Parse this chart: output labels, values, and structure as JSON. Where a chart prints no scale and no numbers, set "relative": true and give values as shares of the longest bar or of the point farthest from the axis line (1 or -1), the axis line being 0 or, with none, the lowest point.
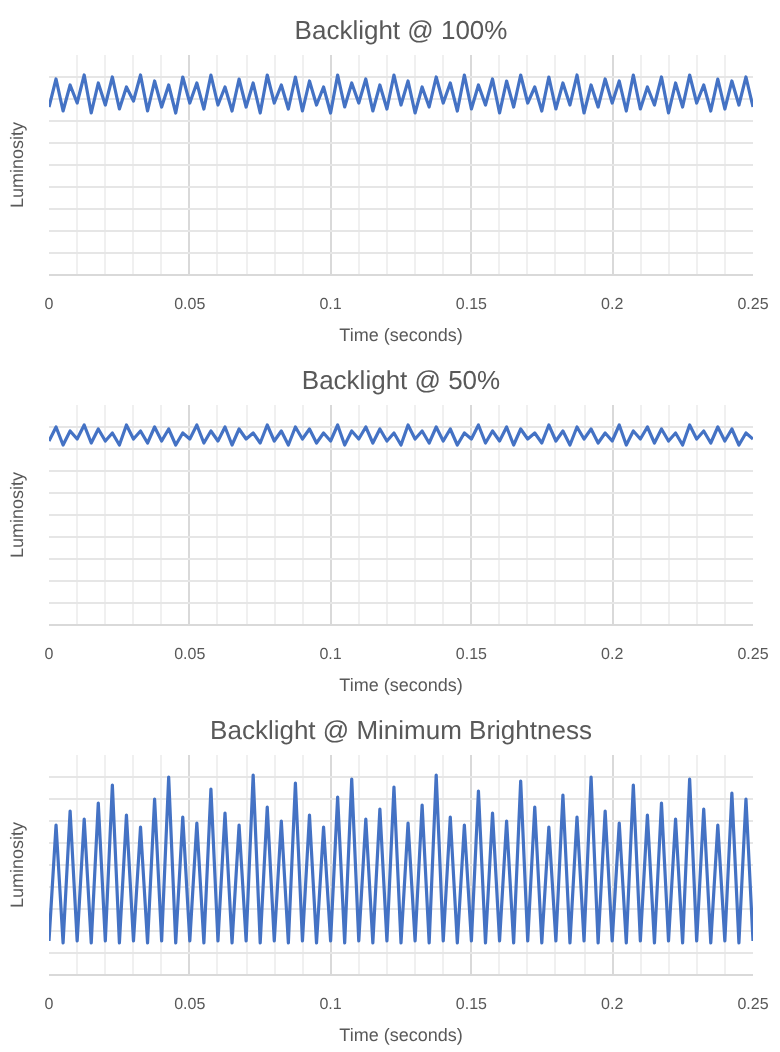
{
  "chart_data": [
    {
      "type": "line",
      "title": "Backlight @ 100%",
      "xlabel": "Time (seconds)",
      "ylabel": "Luminosity",
      "relative": true,
      "grid": true,
      "tick_labels": "x",
      "xlim": [
        0,
        0.25
      ],
      "xticks": [
        0,
        0.05,
        0.1,
        0.15,
        0.2,
        0.25
      ],
      "x": [
        0,
        0.0025,
        0.005,
        0.0075,
        0.01,
        0.0125,
        0.015,
        0.0175,
        0.02,
        0.0225,
        0.025,
        0.0275,
        0.03,
        0.0325,
        0.035,
        0.0375,
        0.04,
        0.0425,
        0.045,
        0.0475,
        0.05,
        0.0525,
        0.055,
        0.0575,
        0.06,
        0.0625,
        0.065,
        0.0675,
        0.07,
        0.0725,
        0.075,
        0.0775,
        0.08,
        0.0825,
        0.085,
        0.0875,
        0.09,
        0.0925,
        0.095,
        0.0975,
        0.1,
        0.1025,
        0.105,
        0.1075,
        0.11,
        0.1125,
        0.115,
        0.1175,
        0.12,
        0.1225,
        0.125,
        0.1275,
        0.13,
        0.1325,
        0.135,
        0.1375,
        0.14,
        0.1425,
        0.145,
        0.1475,
        0.15,
        0.1525,
        0.155,
        0.1575,
        0.16,
        0.1625,
        0.165,
        0.1675,
        0.17,
        0.1725,
        0.175,
        0.1775,
        0.18,
        0.1825,
        0.185,
        0.1875,
        0.19,
        0.1925,
        0.195,
        0.1975,
        0.2,
        0.2025,
        0.205,
        0.2075,
        0.21,
        0.2125,
        0.215,
        0.2175,
        0.22,
        0.2225,
        0.225,
        0.2275,
        0.23,
        0.2325,
        0.235,
        0.2375,
        0.24,
        0.2425,
        0.245,
        0.2475,
        0.25
      ],
      "series": [
        {
          "color": "#4472c4",
          "values": [
            0.84,
            0.98,
            0.82,
            0.95,
            0.86,
            1.0,
            0.81,
            0.96,
            0.85,
            0.99,
            0.83,
            0.94,
            0.87,
            1.0,
            0.82,
            0.97,
            0.84,
            0.95,
            0.81,
            0.99,
            0.86,
            0.96,
            0.83,
            1.0,
            0.85,
            0.94,
            0.82,
            0.98,
            0.84,
            0.96,
            0.81,
            1.0,
            0.86,
            0.95,
            0.83,
            0.99,
            0.82,
            0.97,
            0.85,
            0.94,
            0.81,
            1.0,
            0.84,
            0.96,
            0.86,
            0.98,
            0.82,
            0.95,
            0.83,
            1.0,
            0.85,
            0.97,
            0.81,
            0.94,
            0.84,
            0.99,
            0.86,
            0.96,
            0.82,
            1.0,
            0.83,
            0.95,
            0.85,
            0.98,
            0.81,
            0.97,
            0.84,
            1.0,
            0.86,
            0.94,
            0.82,
            0.99,
            0.83,
            0.96,
            0.85,
            1.0,
            0.81,
            0.95,
            0.84,
            0.98,
            0.86,
            0.97,
            0.82,
            1.0,
            0.83,
            0.94,
            0.85,
            0.99,
            0.81,
            0.96,
            0.84,
            1.0,
            0.86,
            0.95,
            0.82,
            0.98,
            0.83,
            0.97,
            0.85,
            0.99,
            0.84
          ]
        }
      ]
    },
    {
      "type": "line",
      "title": "Backlight @ 50%",
      "xlabel": "Time (seconds)",
      "ylabel": "Luminosity",
      "relative": true,
      "grid": true,
      "tick_labels": "x",
      "xlim": [
        0,
        0.25
      ],
      "xticks": [
        0,
        0.05,
        0.1,
        0.15,
        0.2,
        0.25
      ],
      "x": [
        0,
        0.0025,
        0.005,
        0.0075,
        0.01,
        0.0125,
        0.015,
        0.0175,
        0.02,
        0.0225,
        0.025,
        0.0275,
        0.03,
        0.0325,
        0.035,
        0.0375,
        0.04,
        0.0425,
        0.045,
        0.0475,
        0.05,
        0.0525,
        0.055,
        0.0575,
        0.06,
        0.0625,
        0.065,
        0.0675,
        0.07,
        0.0725,
        0.075,
        0.0775,
        0.08,
        0.0825,
        0.085,
        0.0875,
        0.09,
        0.0925,
        0.095,
        0.0975,
        0.1,
        0.1025,
        0.105,
        0.1075,
        0.11,
        0.1125,
        0.115,
        0.1175,
        0.12,
        0.1225,
        0.125,
        0.1275,
        0.13,
        0.1325,
        0.135,
        0.1375,
        0.14,
        0.1425,
        0.145,
        0.1475,
        0.15,
        0.1525,
        0.155,
        0.1575,
        0.16,
        0.1625,
        0.165,
        0.1675,
        0.17,
        0.1725,
        0.175,
        0.1775,
        0.18,
        0.1825,
        0.185,
        0.1875,
        0.19,
        0.1925,
        0.195,
        0.1975,
        0.2,
        0.2025,
        0.205,
        0.2075,
        0.21,
        0.2125,
        0.215,
        0.2175,
        0.22,
        0.2225,
        0.225,
        0.2275,
        0.23,
        0.2325,
        0.235,
        0.2375,
        0.24,
        0.2425,
        0.245,
        0.2475,
        0.25
      ],
      "series": [
        {
          "color": "#4472c4",
          "values": [
            0.92,
            0.99,
            0.9,
            0.97,
            0.93,
            1.0,
            0.91,
            0.98,
            0.92,
            0.96,
            0.9,
            1.0,
            0.93,
            0.97,
            0.91,
            0.99,
            0.92,
            0.98,
            0.9,
            0.96,
            0.93,
            1.0,
            0.91,
            0.97,
            0.92,
            0.99,
            0.9,
            0.98,
            0.93,
            0.96,
            0.91,
            1.0,
            0.92,
            0.97,
            0.9,
            0.99,
            0.93,
            0.98,
            0.91,
            0.96,
            0.92,
            1.0,
            0.9,
            0.97,
            0.93,
            0.99,
            0.91,
            0.98,
            0.92,
            0.96,
            0.9,
            1.0,
            0.93,
            0.97,
            0.91,
            0.99,
            0.92,
            0.98,
            0.9,
            0.96,
            0.93,
            1.0,
            0.91,
            0.97,
            0.92,
            0.99,
            0.9,
            0.98,
            0.93,
            0.96,
            0.91,
            1.0,
            0.92,
            0.97,
            0.9,
            0.99,
            0.93,
            0.98,
            0.91,
            0.96,
            0.92,
            1.0,
            0.9,
            0.97,
            0.93,
            0.99,
            0.91,
            0.98,
            0.92,
            0.96,
            0.9,
            1.0,
            0.93,
            0.97,
            0.91,
            0.99,
            0.92,
            0.98,
            0.9,
            0.96,
            0.93
          ]
        }
      ]
    },
    {
      "type": "line",
      "title": "Backlight @ Minimum Brightness",
      "xlabel": "Time (seconds)",
      "ylabel": "Luminosity",
      "relative": true,
      "grid": true,
      "tick_labels": "x",
      "xlim": [
        0,
        0.25
      ],
      "xticks": [
        0,
        0.05,
        0.1,
        0.15,
        0.2,
        0.25
      ],
      "x": [
        0,
        0.0025,
        0.005,
        0.0075,
        0.01,
        0.0125,
        0.015,
        0.0175,
        0.02,
        0.0225,
        0.025,
        0.0275,
        0.03,
        0.0325,
        0.035,
        0.0375,
        0.04,
        0.0425,
        0.045,
        0.0475,
        0.05,
        0.0525,
        0.055,
        0.0575,
        0.06,
        0.0625,
        0.065,
        0.0675,
        0.07,
        0.0725,
        0.075,
        0.0775,
        0.08,
        0.0825,
        0.085,
        0.0875,
        0.09,
        0.0925,
        0.095,
        0.0975,
        0.1,
        0.1025,
        0.105,
        0.1075,
        0.11,
        0.1125,
        0.115,
        0.1175,
        0.12,
        0.1225,
        0.125,
        0.1275,
        0.13,
        0.1325,
        0.135,
        0.1375,
        0.14,
        0.1425,
        0.145,
        0.1475,
        0.15,
        0.1525,
        0.155,
        0.1575,
        0.16,
        0.1625,
        0.165,
        0.1675,
        0.17,
        0.1725,
        0.175,
        0.1775,
        0.18,
        0.1825,
        0.185,
        0.1875,
        0.19,
        0.1925,
        0.195,
        0.1975,
        0.2,
        0.2025,
        0.205,
        0.2075,
        0.21,
        0.2125,
        0.215,
        0.2175,
        0.22,
        0.2225,
        0.225,
        0.2275,
        0.23,
        0.2325,
        0.235,
        0.2375,
        0.24,
        0.2425,
        0.245,
        0.2475,
        0.25
      ],
      "series": [
        {
          "color": "#4472c4",
          "values": [
            0.17,
            0.75,
            0.16,
            0.82,
            0.17,
            0.78,
            0.16,
            0.86,
            0.17,
            0.95,
            0.16,
            0.8,
            0.17,
            0.74,
            0.16,
            0.88,
            0.17,
            0.99,
            0.16,
            0.79,
            0.17,
            0.76,
            0.16,
            0.93,
            0.17,
            0.81,
            0.16,
            0.75,
            0.17,
            1.0,
            0.16,
            0.84,
            0.17,
            0.77,
            0.16,
            0.96,
            0.17,
            0.8,
            0.16,
            0.74,
            0.17,
            0.89,
            0.16,
            0.98,
            0.17,
            0.78,
            0.16,
            0.83,
            0.17,
            0.94,
            0.16,
            0.76,
            0.17,
            0.85,
            0.16,
            1.0,
            0.17,
            0.79,
            0.16,
            0.75,
            0.17,
            0.92,
            0.16,
            0.81,
            0.17,
            0.77,
            0.16,
            0.97,
            0.17,
            0.84,
            0.16,
            0.74,
            0.17,
            0.9,
            0.16,
            0.79,
            0.17,
            0.99,
            0.16,
            0.82,
            0.17,
            0.76,
            0.16,
            0.95,
            0.17,
            0.8,
            0.16,
            0.86,
            0.17,
            0.78,
            0.16,
            0.98,
            0.17,
            0.83,
            0.16,
            0.75,
            0.17,
            0.91,
            0.16,
            0.88,
            0.17
          ]
        }
      ]
    }
  ]
}
